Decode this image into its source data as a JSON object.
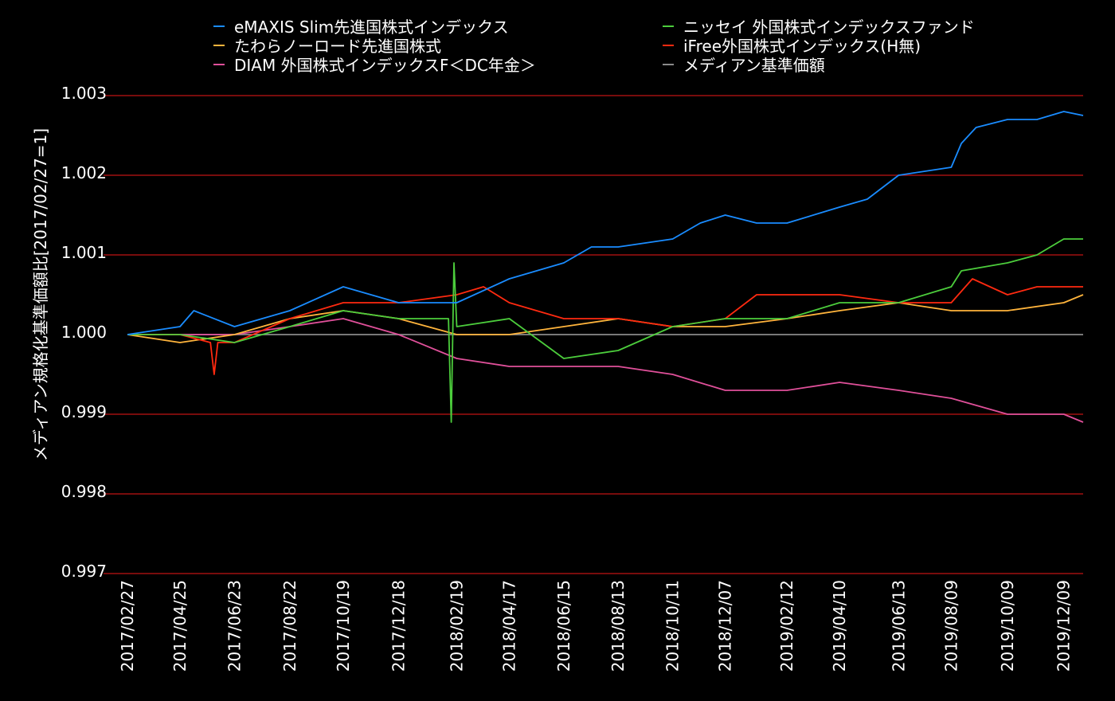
{
  "chart_data": {
    "type": "line",
    "title": "",
    "xlabel": "",
    "ylabel": "メディアン規格化基準価額比[2017/02/27=1]",
    "ylim": [
      0.997,
      1.003
    ],
    "yticks": [
      "0.997",
      "0.998",
      "0.999",
      "1.000",
      "1.001",
      "1.002",
      "1.003"
    ],
    "xticks": [
      "2017/02/27",
      "2017/04/25",
      "2017/06/23",
      "2017/08/22",
      "2017/10/19",
      "2017/12/18",
      "2018/02/19",
      "2018/04/17",
      "2018/06/15",
      "2018/08/13",
      "2018/10/11",
      "2018/12/07",
      "2019/02/12",
      "2019/04/10",
      "2019/06/13",
      "2019/08/09",
      "2019/10/09",
      "2019/12/09"
    ],
    "grid": true,
    "legend_position": "top",
    "series": [
      {
        "name": "eMAXIS Slim先進国株式インデックス",
        "color": "#1a8cff",
        "points": [
          [
            "2017/02/27",
            1.0
          ],
          [
            "2017/04/25",
            1.0001
          ],
          [
            "2017/05/10",
            1.0003
          ],
          [
            "2017/06/23",
            1.0001
          ],
          [
            "2017/08/22",
            1.0003
          ],
          [
            "2017/10/19",
            1.0006
          ],
          [
            "2017/12/18",
            1.0004
          ],
          [
            "2018/01/20",
            1.0004
          ],
          [
            "2018/02/19",
            1.0004
          ],
          [
            "2018/04/17",
            1.0007
          ],
          [
            "2018/06/15",
            1.0009
          ],
          [
            "2018/07/15",
            1.0011
          ],
          [
            "2018/08/13",
            1.0011
          ],
          [
            "2018/10/11",
            1.0012
          ],
          [
            "2018/11/10",
            1.0014
          ],
          [
            "2018/12/07",
            1.0015
          ],
          [
            "2019/01/10",
            1.0014
          ],
          [
            "2019/02/12",
            1.0014
          ],
          [
            "2019/04/10",
            1.0016
          ],
          [
            "2019/05/10",
            1.0017
          ],
          [
            "2019/06/13",
            1.002
          ],
          [
            "2019/08/09",
            1.0021
          ],
          [
            "2019/08/20",
            1.0024
          ],
          [
            "2019/09/05",
            1.0026
          ],
          [
            "2019/10/09",
            1.0027
          ],
          [
            "2019/11/10",
            1.0027
          ],
          [
            "2019/12/09",
            1.0028
          ],
          [
            "2019/12/30",
            1.00275
          ]
        ]
      },
      {
        "name": "たわらノーロード先進国株式",
        "color": "#ffb43c",
        "points": [
          [
            "2017/02/27",
            1.0
          ],
          [
            "2017/04/25",
            0.9999
          ],
          [
            "2017/06/23",
            1.0
          ],
          [
            "2017/08/22",
            1.0002
          ],
          [
            "2017/10/19",
            1.0003
          ],
          [
            "2017/12/18",
            1.0002
          ],
          [
            "2018/02/19",
            1.0
          ],
          [
            "2018/04/17",
            1.0
          ],
          [
            "2018/06/15",
            1.0001
          ],
          [
            "2018/08/13",
            1.0002
          ],
          [
            "2018/10/11",
            1.0001
          ],
          [
            "2018/12/07",
            1.0001
          ],
          [
            "2019/02/12",
            1.0002
          ],
          [
            "2019/04/10",
            1.0003
          ],
          [
            "2019/06/13",
            1.0004
          ],
          [
            "2019/08/09",
            1.0003
          ],
          [
            "2019/10/09",
            1.0003
          ],
          [
            "2019/12/09",
            1.0004
          ],
          [
            "2019/12/30",
            1.0005
          ]
        ]
      },
      {
        "name": "DIAM 外国株式インデックスF＜DC年金＞",
        "color": "#e0509a",
        "points": [
          [
            "2017/02/27",
            1.0
          ],
          [
            "2017/04/25",
            1.0
          ],
          [
            "2017/06/23",
            1.0
          ],
          [
            "2017/08/22",
            1.0001
          ],
          [
            "2017/10/19",
            1.0002
          ],
          [
            "2017/12/18",
            1.0
          ],
          [
            "2018/02/19",
            0.9997
          ],
          [
            "2018/04/17",
            0.9996
          ],
          [
            "2018/06/15",
            0.9996
          ],
          [
            "2018/08/13",
            0.9996
          ],
          [
            "2018/10/11",
            0.9995
          ],
          [
            "2018/12/07",
            0.9993
          ],
          [
            "2019/02/12",
            0.9993
          ],
          [
            "2019/04/10",
            0.9994
          ],
          [
            "2019/06/13",
            0.9993
          ],
          [
            "2019/08/09",
            0.9992
          ],
          [
            "2019/10/09",
            0.999
          ],
          [
            "2019/12/09",
            0.999
          ],
          [
            "2019/12/30",
            0.9989
          ]
        ]
      },
      {
        "name": "ニッセイ 外国株式インデックスファンド",
        "color": "#4ccd3c",
        "points": [
          [
            "2017/02/27",
            1.0
          ],
          [
            "2017/04/25",
            1.0
          ],
          [
            "2017/06/23",
            0.9999
          ],
          [
            "2017/08/22",
            1.0001
          ],
          [
            "2017/10/19",
            1.0003
          ],
          [
            "2017/12/18",
            1.0002
          ],
          [
            "2018/02/10",
            1.0002
          ],
          [
            "2018/02/13",
            0.9989
          ],
          [
            "2018/02/16",
            1.0009
          ],
          [
            "2018/02/19",
            1.0001
          ],
          [
            "2018/04/17",
            1.0002
          ],
          [
            "2018/06/15",
            0.9997
          ],
          [
            "2018/08/13",
            0.9998
          ],
          [
            "2018/10/11",
            1.0001
          ],
          [
            "2018/12/07",
            1.0002
          ],
          [
            "2019/02/12",
            1.0002
          ],
          [
            "2019/04/10",
            1.0004
          ],
          [
            "2019/06/13",
            1.0004
          ],
          [
            "2019/08/09",
            1.0006
          ],
          [
            "2019/08/20",
            1.0008
          ],
          [
            "2019/10/09",
            1.0009
          ],
          [
            "2019/11/10",
            1.001
          ],
          [
            "2019/12/09",
            1.0012
          ],
          [
            "2019/12/30",
            1.0012
          ]
        ]
      },
      {
        "name": "iFree外国株式インデックス(H無)",
        "color": "#ff2a10",
        "points": [
          [
            "2017/02/27",
            1.0
          ],
          [
            "2017/04/25",
            1.0
          ],
          [
            "2017/05/28",
            0.9999
          ],
          [
            "2017/06/01",
            0.9995
          ],
          [
            "2017/06/05",
            0.9999
          ],
          [
            "2017/06/23",
            0.9999
          ],
          [
            "2017/08/22",
            1.0002
          ],
          [
            "2017/10/19",
            1.0004
          ],
          [
            "2017/12/18",
            1.0004
          ],
          [
            "2018/02/19",
            1.0005
          ],
          [
            "2018/03/20",
            1.0006
          ],
          [
            "2018/04/17",
            1.0004
          ],
          [
            "2018/06/15",
            1.0002
          ],
          [
            "2018/08/13",
            1.0002
          ],
          [
            "2018/10/11",
            1.0001
          ],
          [
            "2018/12/07",
            1.0002
          ],
          [
            "2019/01/10",
            1.0005
          ],
          [
            "2019/02/12",
            1.0005
          ],
          [
            "2019/04/10",
            1.0005
          ],
          [
            "2019/06/13",
            1.0004
          ],
          [
            "2019/08/09",
            1.0004
          ],
          [
            "2019/09/01",
            1.0007
          ],
          [
            "2019/10/09",
            1.0005
          ],
          [
            "2019/11/10",
            1.0006
          ],
          [
            "2019/12/09",
            1.0006
          ],
          [
            "2019/12/30",
            1.0006
          ]
        ]
      },
      {
        "name": "メディアン基準価額",
        "color": "#8a8a8a",
        "points": [
          [
            "2017/02/27",
            1.0
          ],
          [
            "2019/12/30",
            1.0
          ]
        ]
      }
    ]
  }
}
